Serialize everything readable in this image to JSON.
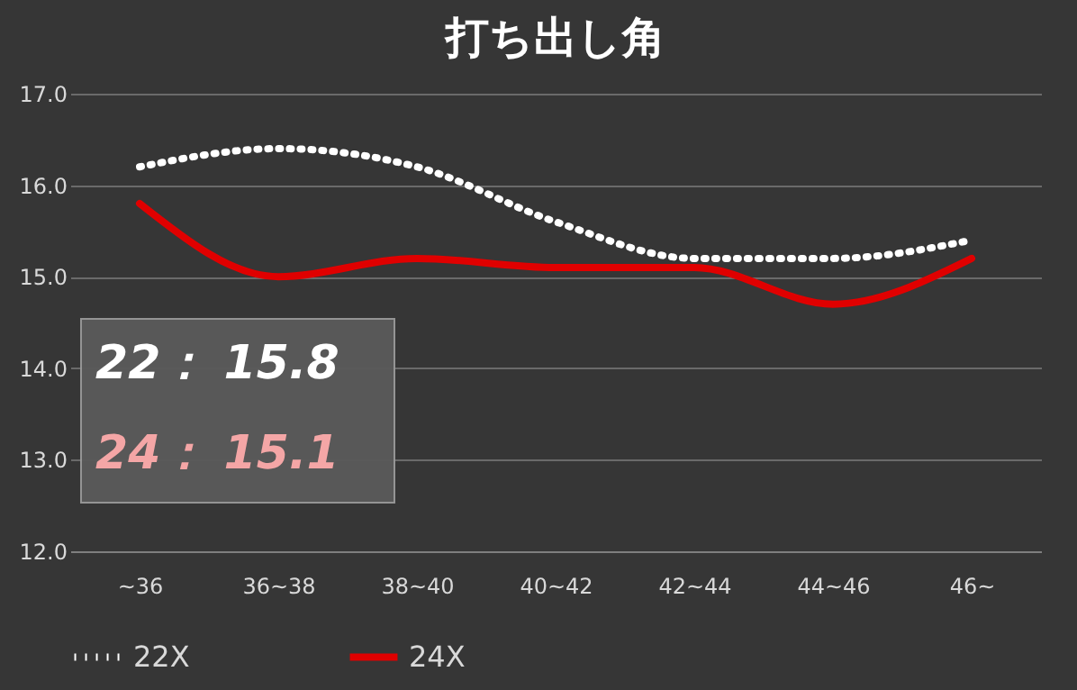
{
  "chart_data": {
    "type": "line",
    "title": "打ち出し角",
    "categories": [
      "~36",
      "36~38",
      "38~40",
      "40~42",
      "42~44",
      "44~46",
      "46~"
    ],
    "series": [
      {
        "name": "22X",
        "color": "#ffffff",
        "line_style": "dotted",
        "values": [
          16.2,
          16.4,
          16.2,
          15.6,
          15.2,
          15.2,
          15.4
        ]
      },
      {
        "name": "24X",
        "color": "#e00000",
        "line_style": "solid",
        "values": [
          15.8,
          15.0,
          15.2,
          15.1,
          15.1,
          14.7,
          15.2
        ]
      }
    ],
    "ylim": [
      12,
      17
    ],
    "yticks": [
      {
        "value": 12,
        "label": "12.0"
      },
      {
        "value": 13,
        "label": "13.0"
      },
      {
        "value": 14,
        "label": "14.0"
      },
      {
        "value": 15,
        "label": "15.0"
      },
      {
        "value": 16,
        "label": "16.0"
      },
      {
        "value": 17,
        "label": "17.0"
      }
    ],
    "grid": "y",
    "legend": "bottom",
    "marker": "none",
    "annotations": [
      "22：  15.8",
      "24：  15.1"
    ]
  }
}
